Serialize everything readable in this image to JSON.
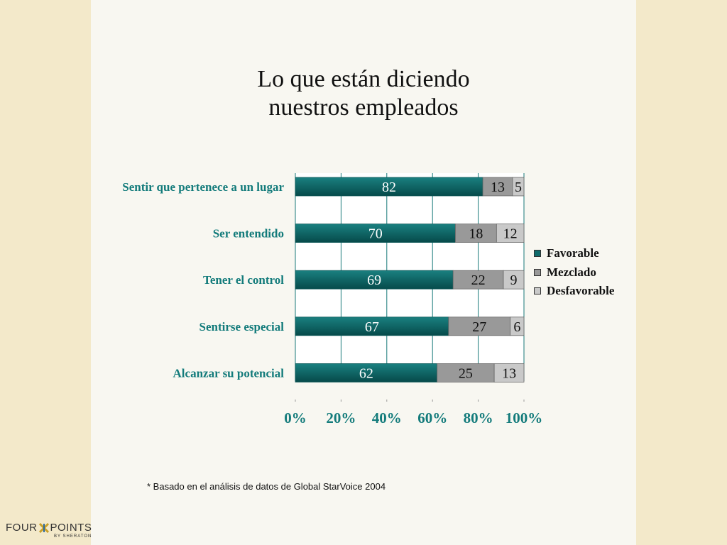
{
  "title_lines": [
    "Lo que están diciendo",
    "nuestros empleados"
  ],
  "chart_data": {
    "type": "bar",
    "orientation": "horizontal",
    "stacked": true,
    "categories": [
      "Sentir que pertenece a un lugar",
      "Ser entendido",
      "Tener el control",
      "Sentirse especial",
      "Alcanzar su potencial"
    ],
    "series": [
      {
        "name": "Favorable",
        "values": [
          82,
          70,
          69,
          67,
          62
        ],
        "color": "#0f6b6b"
      },
      {
        "name": "Mezclado",
        "values": [
          13,
          18,
          22,
          27,
          25
        ],
        "color": "#999999"
      },
      {
        "name": "Desfavorable",
        "values": [
          5,
          12,
          9,
          6,
          13
        ],
        "color": "#c9c9c9"
      }
    ],
    "xlim": [
      0,
      100
    ],
    "x_ticks": [
      "0%",
      "20%",
      "40%",
      "60%",
      "80%",
      "100%"
    ],
    "legend_position": "right",
    "grid": true
  },
  "footnote": "* Basado en el análisis de datos de Global StarVoice 2004",
  "logo": {
    "main_left": "FOUR",
    "main_right": "POINTS",
    "sub": "BY SHERATON"
  },
  "colors": {
    "accent": "#0f7a7a",
    "text_teal": "#137b7b"
  }
}
